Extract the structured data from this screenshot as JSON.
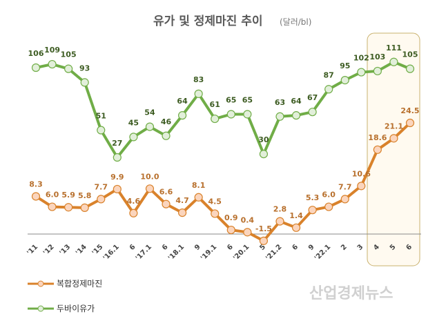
{
  "chart_data": {
    "type": "line",
    "title": "유가 및 정제마진 추이",
    "unit": "(달러/bl)",
    "categories": [
      "'11",
      "'12",
      "'13",
      "'14",
      "'15",
      "'16.1",
      "6",
      "'17.1",
      "6",
      "'18.1",
      "9",
      "'19.1",
      "6",
      "'20.1",
      "5",
      "'21.2",
      "6",
      "9",
      "'22.1",
      "2",
      "3",
      "4",
      "5",
      "6"
    ],
    "series": [
      {
        "name": "두바이유가",
        "color": "#70ad47",
        "values": [
          106,
          109,
          105,
          93,
          51,
          27,
          45,
          54,
          46,
          64,
          83,
          61,
          65,
          65,
          30,
          63,
          64,
          67,
          87,
          95,
          102,
          103,
          111,
          105
        ]
      },
      {
        "name": "복합정제마진",
        "color": "#d9822b",
        "values": [
          8.3,
          6.0,
          5.9,
          5.8,
          7.7,
          9.9,
          4.6,
          10.0,
          6.6,
          4.7,
          8.1,
          4.5,
          0.9,
          0.4,
          -1.5,
          2.8,
          1.4,
          5.3,
          6.0,
          7.7,
          10.6,
          18.6,
          21.1,
          24.5
        ]
      }
    ],
    "highlight_categories": [
      "4",
      "5",
      "6"
    ],
    "legend_position": "bottom-left",
    "grid": false
  },
  "watermark": "산업경제뉴스"
}
